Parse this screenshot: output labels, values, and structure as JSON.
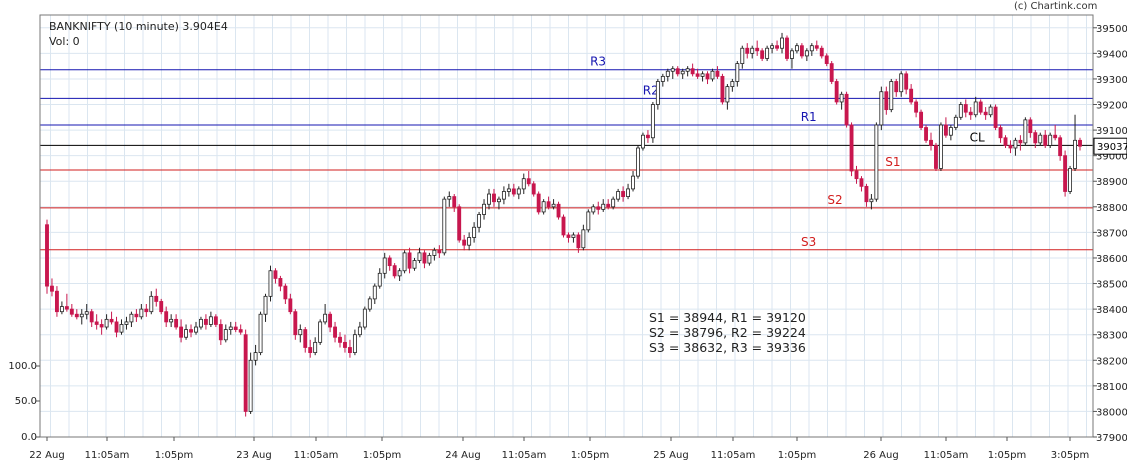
{
  "header": {
    "title": "BANKNIFTY (10 minute) 3.904E4",
    "volume": "Vol: 0",
    "credit": "(c) Chartink.com"
  },
  "pivot_summary": [
    "S1 = 38944, R1 = 39120",
    "S2 = 38796, R2 = 39224",
    "S3 = 38632, R3 = 39336"
  ],
  "colors": {
    "up": "#222222",
    "down": "#c8174e",
    "resistance": "#1515b0",
    "support": "#d21e1e",
    "close_line": "#000000",
    "grid": "#dbe6f0"
  },
  "chart_data": {
    "type": "candlestick",
    "title": "BANKNIFTY (10 minute)",
    "last_value": "3.904E4",
    "ylim": [
      37900,
      39550
    ],
    "y_ticks": [
      37900,
      38000,
      38100,
      38200,
      38300,
      38400,
      38500,
      38600,
      38700,
      38800,
      38900,
      39000,
      39100,
      39200,
      39300,
      39400,
      39500
    ],
    "volume_ticks": [
      "0.0",
      "50.0",
      "100.0"
    ],
    "x_ticks": [
      "22 Aug",
      "11:05am",
      "1:05pm",
      "23 Aug",
      "11:05am",
      "1:05pm",
      "24 Aug",
      "11:05am",
      "1:05pm",
      "25 Aug",
      "11:05am",
      "1:05pm",
      "26 Aug",
      "11:05am",
      "1:05pm",
      "3:05pm"
    ],
    "last_price_label": "39037",
    "grid": true,
    "levels": [
      {
        "label": "R3",
        "value": 39336,
        "kind": "resistance",
        "label_pos": 0.53
      },
      {
        "label": "R2",
        "value": 39224,
        "kind": "resistance",
        "label_pos": 0.58
      },
      {
        "label": "R1",
        "value": 39120,
        "kind": "resistance",
        "label_pos": 0.73
      },
      {
        "label": "CL",
        "value": 39040,
        "kind": "close",
        "label_pos": 0.89
      },
      {
        "label": "S1",
        "value": 38944,
        "kind": "support",
        "label_pos": 0.81
      },
      {
        "label": "S2",
        "value": 38796,
        "kind": "support",
        "label_pos": 0.755
      },
      {
        "label": "S3",
        "value": 38632,
        "kind": "support",
        "label_pos": 0.73
      }
    ],
    "candles": [
      [
        38730,
        38750,
        38460,
        38490
      ],
      [
        38490,
        38520,
        38450,
        38470
      ],
      [
        38470,
        38490,
        38370,
        38390
      ],
      [
        38390,
        38430,
        38380,
        38410
      ],
      [
        38410,
        38460,
        38390,
        38400
      ],
      [
        38400,
        38420,
        38370,
        38380
      ],
      [
        38380,
        38400,
        38360,
        38370
      ],
      [
        38370,
        38400,
        38340,
        38380
      ],
      [
        38380,
        38420,
        38360,
        38390
      ],
      [
        38390,
        38400,
        38330,
        38350
      ],
      [
        38350,
        38380,
        38320,
        38340
      ],
      [
        38340,
        38360,
        38300,
        38330
      ],
      [
        38330,
        38380,
        38320,
        38360
      ],
      [
        38360,
        38390,
        38340,
        38350
      ],
      [
        38350,
        38370,
        38290,
        38310
      ],
      [
        38310,
        38360,
        38300,
        38340
      ],
      [
        38340,
        38370,
        38320,
        38350
      ],
      [
        38350,
        38390,
        38330,
        38380
      ],
      [
        38380,
        38400,
        38350,
        38370
      ],
      [
        38370,
        38420,
        38360,
        38400
      ],
      [
        38400,
        38420,
        38370,
        38390
      ],
      [
        38390,
        38470,
        38380,
        38450
      ],
      [
        38450,
        38480,
        38410,
        38430
      ],
      [
        38430,
        38440,
        38380,
        38390
      ],
      [
        38390,
        38410,
        38330,
        38350
      ],
      [
        38350,
        38380,
        38330,
        38360
      ],
      [
        38360,
        38380,
        38320,
        38330
      ],
      [
        38330,
        38360,
        38270,
        38290
      ],
      [
        38290,
        38340,
        38280,
        38320
      ],
      [
        38320,
        38340,
        38290,
        38310
      ],
      [
        38310,
        38350,
        38300,
        38330
      ],
      [
        38330,
        38370,
        38320,
        38360
      ],
      [
        38360,
        38380,
        38320,
        38340
      ],
      [
        38340,
        38390,
        38330,
        38370
      ],
      [
        38370,
        38380,
        38330,
        38340
      ],
      [
        38340,
        38360,
        38260,
        38280
      ],
      [
        38280,
        38340,
        38270,
        38320
      ],
      [
        38320,
        38350,
        38300,
        38330
      ],
      [
        38330,
        38350,
        38310,
        38320
      ],
      [
        38320,
        38340,
        38300,
        38310
      ],
      [
        38300,
        38320,
        37980,
        38000
      ],
      [
        38000,
        38230,
        37990,
        38200
      ],
      [
        38200,
        38260,
        38180,
        38230
      ],
      [
        38230,
        38390,
        38220,
        38380
      ],
      [
        38380,
        38460,
        38350,
        38450
      ],
      [
        38450,
        38570,
        38430,
        38550
      ],
      [
        38550,
        38560,
        38500,
        38520
      ],
      [
        38520,
        38530,
        38470,
        38490
      ],
      [
        38490,
        38500,
        38420,
        38440
      ],
      [
        38440,
        38460,
        38380,
        38390
      ],
      [
        38390,
        38400,
        38280,
        38300
      ],
      [
        38300,
        38340,
        38270,
        38320
      ],
      [
        38320,
        38330,
        38230,
        38250
      ],
      [
        38250,
        38280,
        38210,
        38230
      ],
      [
        38230,
        38290,
        38220,
        38270
      ],
      [
        38270,
        38360,
        38260,
        38350
      ],
      [
        38350,
        38420,
        38340,
        38380
      ],
      [
        38380,
        38390,
        38310,
        38330
      ],
      [
        38330,
        38350,
        38270,
        38290
      ],
      [
        38290,
        38310,
        38250,
        38270
      ],
      [
        38270,
        38300,
        38230,
        38250
      ],
      [
        38250,
        38280,
        38210,
        38230
      ],
      [
        38230,
        38320,
        38220,
        38300
      ],
      [
        38300,
        38350,
        38290,
        38330
      ],
      [
        38330,
        38410,
        38320,
        38400
      ],
      [
        38400,
        38450,
        38390,
        38440
      ],
      [
        38440,
        38500,
        38420,
        38490
      ],
      [
        38490,
        38560,
        38480,
        38540
      ],
      [
        38540,
        38620,
        38520,
        38600
      ],
      [
        38600,
        38610,
        38550,
        38570
      ],
      [
        38570,
        38580,
        38520,
        38530
      ],
      [
        38530,
        38560,
        38510,
        38550
      ],
      [
        38550,
        38630,
        38540,
        38620
      ],
      [
        38620,
        38640,
        38540,
        38560
      ],
      [
        38560,
        38600,
        38550,
        38590
      ],
      [
        38590,
        38640,
        38580,
        38620
      ],
      [
        38620,
        38630,
        38560,
        38580
      ],
      [
        38580,
        38620,
        38570,
        38610
      ],
      [
        38610,
        38640,
        38590,
        38630
      ],
      [
        38630,
        38650,
        38600,
        38620
      ],
      [
        38620,
        38840,
        38610,
        38830
      ],
      [
        38830,
        38860,
        38800,
        38840
      ],
      [
        38840,
        38850,
        38780,
        38800
      ],
      [
        38800,
        38810,
        38660,
        38670
      ],
      [
        38670,
        38690,
        38630,
        38650
      ],
      [
        38650,
        38700,
        38630,
        38680
      ],
      [
        38680,
        38740,
        38660,
        38720
      ],
      [
        38720,
        38780,
        38700,
        38770
      ],
      [
        38770,
        38830,
        38750,
        38810
      ],
      [
        38810,
        38870,
        38790,
        38850
      ],
      [
        38850,
        38870,
        38800,
        38820
      ],
      [
        38820,
        38840,
        38790,
        38830
      ],
      [
        38830,
        38880,
        38810,
        38860
      ],
      [
        38860,
        38890,
        38840,
        38870
      ],
      [
        38870,
        38890,
        38840,
        38850
      ],
      [
        38850,
        38880,
        38830,
        38870
      ],
      [
        38870,
        38930,
        38850,
        38910
      ],
      [
        38910,
        38940,
        38880,
        38890
      ],
      [
        38890,
        38900,
        38840,
        38850
      ],
      [
        38850,
        38860,
        38770,
        38780
      ],
      [
        38780,
        38830,
        38770,
        38820
      ],
      [
        38820,
        38840,
        38790,
        38800
      ],
      [
        38800,
        38830,
        38790,
        38810
      ],
      [
        38810,
        38820,
        38750,
        38760
      ],
      [
        38760,
        38770,
        38680,
        38690
      ],
      [
        38690,
        38700,
        38660,
        38680
      ],
      [
        38680,
        38700,
        38660,
        38690
      ],
      [
        38690,
        38700,
        38620,
        38640
      ],
      [
        38640,
        38730,
        38630,
        38710
      ],
      [
        38710,
        38790,
        38700,
        38780
      ],
      [
        38780,
        38810,
        38770,
        38800
      ],
      [
        38800,
        38820,
        38770,
        38790
      ],
      [
        38790,
        38830,
        38780,
        38810
      ],
      [
        38810,
        38830,
        38790,
        38800
      ],
      [
        38800,
        38840,
        38790,
        38830
      ],
      [
        38830,
        38870,
        38820,
        38860
      ],
      [
        38860,
        38880,
        38820,
        38840
      ],
      [
        38840,
        38890,
        38830,
        38870
      ],
      [
        38870,
        38940,
        38860,
        38920
      ],
      [
        38920,
        39040,
        38910,
        39030
      ],
      [
        39030,
        39090,
        39020,
        39080
      ],
      [
        39080,
        39100,
        39050,
        39070
      ],
      [
        39070,
        39210,
        39050,
        39200
      ],
      [
        39200,
        39300,
        39180,
        39290
      ],
      [
        39290,
        39320,
        39270,
        39310
      ],
      [
        39310,
        39340,
        39290,
        39330
      ],
      [
        39330,
        39350,
        39300,
        39340
      ],
      [
        39340,
        39350,
        39310,
        39320
      ],
      [
        39320,
        39340,
        39300,
        39330
      ],
      [
        39330,
        39350,
        39310,
        39340
      ],
      [
        39340,
        39360,
        39310,
        39320
      ],
      [
        39320,
        39340,
        39300,
        39310
      ],
      [
        39310,
        39330,
        39290,
        39320
      ],
      [
        39320,
        39330,
        39280,
        39300
      ],
      [
        39300,
        39340,
        39290,
        39330
      ],
      [
        39330,
        39350,
        39300,
        39310
      ],
      [
        39310,
        39320,
        39200,
        39210
      ],
      [
        39210,
        39280,
        39180,
        39270
      ],
      [
        39270,
        39300,
        39250,
        39290
      ],
      [
        39290,
        39370,
        39270,
        39360
      ],
      [
        39360,
        39430,
        39340,
        39420
      ],
      [
        39420,
        39440,
        39380,
        39400
      ],
      [
        39400,
        39430,
        39380,
        39420
      ],
      [
        39420,
        39450,
        39390,
        39410
      ],
      [
        39410,
        39420,
        39370,
        39380
      ],
      [
        39380,
        39430,
        39370,
        39420
      ],
      [
        39420,
        39440,
        39400,
        39430
      ],
      [
        39430,
        39450,
        39410,
        39420
      ],
      [
        39420,
        39480,
        39400,
        39460
      ],
      [
        39460,
        39470,
        39370,
        39380
      ],
      [
        39380,
        39420,
        39340,
        39410
      ],
      [
        39410,
        39440,
        39400,
        39430
      ],
      [
        39430,
        39440,
        39380,
        39390
      ],
      [
        39390,
        39420,
        39370,
        39410
      ],
      [
        39410,
        39440,
        39390,
        39430
      ],
      [
        39430,
        39450,
        39410,
        39420
      ],
      [
        39420,
        39430,
        39380,
        39390
      ],
      [
        39390,
        39400,
        39350,
        39360
      ],
      [
        39360,
        39370,
        39280,
        39290
      ],
      [
        39290,
        39300,
        39200,
        39210
      ],
      [
        39210,
        39250,
        39180,
        39240
      ],
      [
        39240,
        39250,
        39110,
        39120
      ],
      [
        39120,
        39130,
        38920,
        38940
      ],
      [
        38940,
        38960,
        38890,
        38910
      ],
      [
        38910,
        38920,
        38860,
        38880
      ],
      [
        38880,
        38890,
        38800,
        38820
      ],
      [
        38820,
        38850,
        38790,
        38830
      ],
      [
        38830,
        39130,
        38820,
        39120
      ],
      [
        39120,
        39270,
        39100,
        39250
      ],
      [
        39250,
        39270,
        39160,
        39180
      ],
      [
        39180,
        39300,
        39170,
        39290
      ],
      [
        39290,
        39300,
        39230,
        39250
      ],
      [
        39250,
        39330,
        39230,
        39320
      ],
      [
        39320,
        39330,
        39240,
        39260
      ],
      [
        39260,
        39280,
        39200,
        39210
      ],
      [
        39210,
        39220,
        39150,
        39170
      ],
      [
        39170,
        39180,
        39100,
        39110
      ],
      [
        39110,
        39120,
        39050,
        39060
      ],
      [
        39060,
        39090,
        39020,
        39040
      ],
      [
        39040,
        39050,
        38940,
        38950
      ],
      [
        38950,
        39130,
        38940,
        39120
      ],
      [
        39120,
        39150,
        39070,
        39080
      ],
      [
        39080,
        39120,
        39060,
        39110
      ],
      [
        39110,
        39160,
        39100,
        39150
      ],
      [
        39150,
        39210,
        39140,
        39200
      ],
      [
        39200,
        39220,
        39150,
        39170
      ],
      [
        39170,
        39190,
        39140,
        39160
      ],
      [
        39160,
        39230,
        39150,
        39210
      ],
      [
        39210,
        39220,
        39160,
        39170
      ],
      [
        39170,
        39190,
        39140,
        39160
      ],
      [
        39160,
        39200,
        39150,
        39190
      ],
      [
        39190,
        39200,
        39100,
        39110
      ],
      [
        39110,
        39120,
        39050,
        39070
      ],
      [
        39070,
        39080,
        39030,
        39040
      ],
      [
        39040,
        39060,
        39010,
        39030
      ],
      [
        39030,
        39070,
        39000,
        39060
      ],
      [
        39060,
        39080,
        39020,
        39050
      ],
      [
        39050,
        39150,
        39040,
        39140
      ],
      [
        39140,
        39150,
        39070,
        39090
      ],
      [
        39090,
        39100,
        39030,
        39050
      ],
      [
        39050,
        39090,
        39040,
        39080
      ],
      [
        39080,
        39100,
        39030,
        39040
      ],
      [
        39040,
        39090,
        39030,
        39080
      ],
      [
        39080,
        39120,
        39060,
        39070
      ],
      [
        39070,
        39080,
        38980,
        39000
      ],
      [
        39000,
        39020,
        38840,
        38860
      ],
      [
        38860,
        38960,
        38850,
        38950
      ],
      [
        38950,
        39160,
        38940,
        39060
      ],
      [
        39060,
        39070,
        39020,
        39037
      ]
    ]
  }
}
